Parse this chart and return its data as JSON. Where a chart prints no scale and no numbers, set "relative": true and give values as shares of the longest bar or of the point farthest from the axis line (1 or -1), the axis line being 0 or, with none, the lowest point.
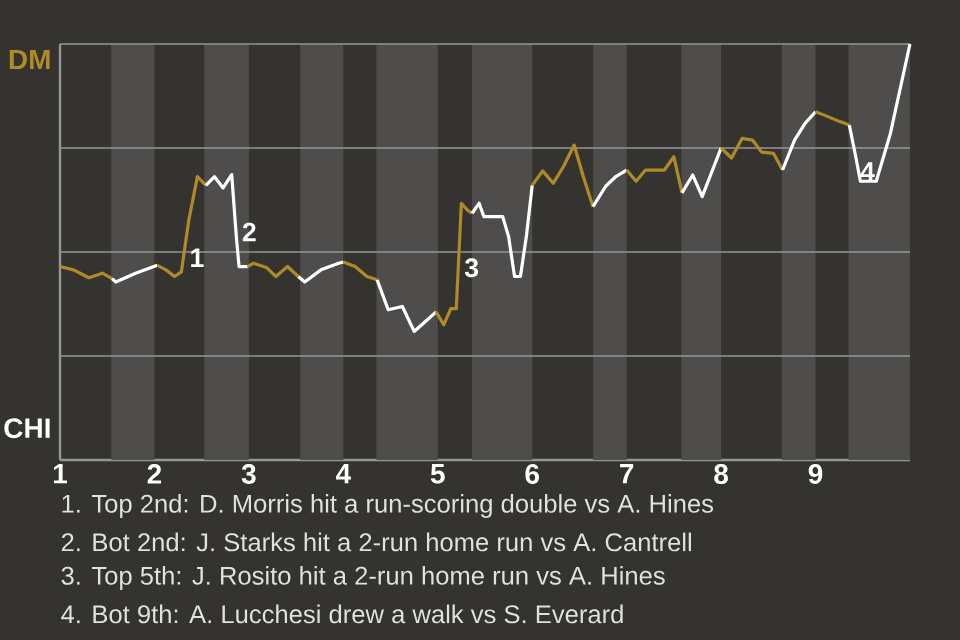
{
  "chart_data": {
    "type": "line",
    "relative": true,
    "xlim": [
      1,
      10
    ],
    "xticks": [
      {
        "value": 1,
        "label": "1"
      },
      {
        "value": 2,
        "label": "2"
      },
      {
        "value": 3,
        "label": "3"
      },
      {
        "value": 4,
        "label": "4"
      },
      {
        "value": 5,
        "label": "5"
      },
      {
        "value": 6,
        "label": "6"
      },
      {
        "value": 7,
        "label": "7"
      },
      {
        "value": 8,
        "label": "8"
      },
      {
        "value": 9,
        "label": "9"
      }
    ],
    "grid": "y",
    "line_style": "solid",
    "bands": [
      {
        "axis": "x",
        "from": 1.543,
        "to": 2,
        "color": "#4e4d4b"
      },
      {
        "axis": "x",
        "from": 2.527,
        "to": 3,
        "color": "#4e4d4b"
      },
      {
        "axis": "x",
        "from": 3.543,
        "to": 4,
        "color": "#4e4d4b"
      },
      {
        "axis": "x",
        "from": 4.35,
        "to": 5,
        "color": "#4e4d4b"
      },
      {
        "axis": "x",
        "from": 5.363,
        "to": 6,
        "color": "#4e4d4b"
      },
      {
        "axis": "x",
        "from": 6.644,
        "to": 7,
        "color": "#4e4d4b"
      },
      {
        "axis": "x",
        "from": 7.58,
        "to": 8,
        "color": "#4e4d4b"
      },
      {
        "axis": "x",
        "from": 8.644,
        "to": 9,
        "color": "#4e4d4b"
      },
      {
        "axis": "x",
        "from": 9.35,
        "to": 10,
        "color": "#4e4d4b"
      }
    ],
    "series": [
      {
        "name": "DM",
        "color": "#b08a28",
        "x": [
          1,
          1.143,
          1.306,
          1.449,
          1.551
        ],
        "values": [
          0.465,
          0.457,
          0.438,
          0.449,
          0.436
        ]
      },
      {
        "name": "CHI",
        "color": "#ffffff",
        "x": [
          1.551,
          1.591,
          1.8,
          2.031
        ],
        "values": [
          0.436,
          0.428,
          0.449,
          0.468
        ]
      },
      {
        "color": "#b08a28",
        "x": [
          2.031,
          2.122,
          2.213,
          2.285,
          2.364,
          2.455,
          2.545
        ],
        "values": [
          0.468,
          0.457,
          0.441,
          0.452,
          0.577,
          0.681,
          0.66
        ]
      },
      {
        "color": "#ffffff",
        "x": [
          2.545,
          2.636,
          2.727,
          2.818,
          2.867,
          2.896,
          2.987
        ],
        "values": [
          0.66,
          0.681,
          0.654,
          0.686,
          0.537,
          0.465,
          0.465
        ]
      },
      {
        "color": "#b08a28",
        "x": [
          2.987,
          3.049,
          3.191,
          3.286,
          3.409,
          3.523
        ],
        "values": [
          0.465,
          0.473,
          0.462,
          0.441,
          0.465,
          0.441
        ]
      },
      {
        "color": "#ffffff",
        "x": [
          3.523,
          3.591,
          3.763,
          3.951,
          4
        ],
        "values": [
          0.441,
          0.428,
          0.457,
          0.473,
          0.476
        ]
      },
      {
        "color": "#b08a28",
        "x": [
          4,
          4.125,
          4.25,
          4.358
        ],
        "values": [
          0.476,
          0.465,
          0.441,
          0.433
        ]
      },
      {
        "color": "#ffffff",
        "x": [
          4.358,
          4.475,
          4.625,
          4.75,
          4.875,
          4.983
        ],
        "values": [
          0.433,
          0.361,
          0.369,
          0.309,
          0.334,
          0.356
        ]
      },
      {
        "color": "#b08a28",
        "x": [
          4.983,
          5.063,
          5.138,
          5.196,
          5.25,
          5.313,
          5.363
        ],
        "values": [
          0.356,
          0.325,
          0.364,
          0.364,
          0.617,
          0.601,
          0.593
        ]
      },
      {
        "color": "#ffffff",
        "x": [
          5.363,
          5.438,
          5.488,
          5.688,
          5.75,
          5.813,
          5.875,
          5.938,
          6
        ],
        "values": [
          0.593,
          0.617,
          0.585,
          0.585,
          0.537,
          0.441,
          0.441,
          0.537,
          0.66
        ]
      },
      {
        "color": "#b08a28",
        "x": [
          6,
          6.111,
          6.222,
          6.333,
          6.444,
          6.54,
          6.644
        ],
        "values": [
          0.66,
          0.695,
          0.665,
          0.706,
          0.757,
          0.682,
          0.609
        ]
      },
      {
        "color": "#ffffff",
        "x": [
          6.644,
          6.778,
          6.889,
          7
        ],
        "values": [
          0.609,
          0.658,
          0.682,
          0.697
        ]
      },
      {
        "color": "#b08a28",
        "x": [
          7,
          7.1,
          7.2,
          7.4,
          7.5,
          7.586
        ],
        "values": [
          0.697,
          0.67,
          0.697,
          0.697,
          0.729,
          0.642
        ]
      },
      {
        "color": "#ffffff",
        "x": [
          7.586,
          7.7,
          7.8,
          8
        ],
        "values": [
          0.642,
          0.685,
          0.633,
          0.75
        ]
      },
      {
        "color": "#b08a28",
        "x": [
          8,
          8.111,
          8.222,
          8.333,
          8.429,
          8.556,
          8.651
        ],
        "values": [
          0.75,
          0.726,
          0.773,
          0.769,
          0.74,
          0.737,
          0.697
        ]
      },
      {
        "color": "#ffffff",
        "x": [
          8.651,
          8.778,
          8.889,
          9
        ],
        "values": [
          0.697,
          0.769,
          0.809,
          0.837
        ]
      },
      {
        "color": "#b08a28",
        "x": [
          9,
          9.125,
          9.25,
          9.358
        ],
        "values": [
          0.837,
          0.826,
          0.814,
          0.805
        ]
      },
      {
        "color": "#ffffff",
        "x": [
          9.358,
          9.418,
          9.475,
          9.643,
          9.793,
          10
        ],
        "values": [
          0.805,
          0.738,
          0.67,
          0.67,
          0.785,
          1
        ]
      }
    ],
    "annotations": [
      {
        "text": "1",
        "x": 2.309,
        "y": 0.486
      },
      {
        "text": "2",
        "x": 2.864,
        "y": 0.548
      },
      {
        "text": "3",
        "x": 5.218,
        "y": 0.462
      },
      {
        "text": "4",
        "x": 9.55,
        "y": 0.67
      },
      "1. Top 2nd: D. Morris hit a run-scoring double vs A. Hines",
      "2. Bot 2nd: J. Starks hit a 2-run home run vs A. Cantrell",
      "3. Top 5th: J. Rosito hit a 2-run home run vs A. Hines",
      "4. Bot 9th: A. Lucchesi drew a walk vs S. Everard"
    ]
  }
}
